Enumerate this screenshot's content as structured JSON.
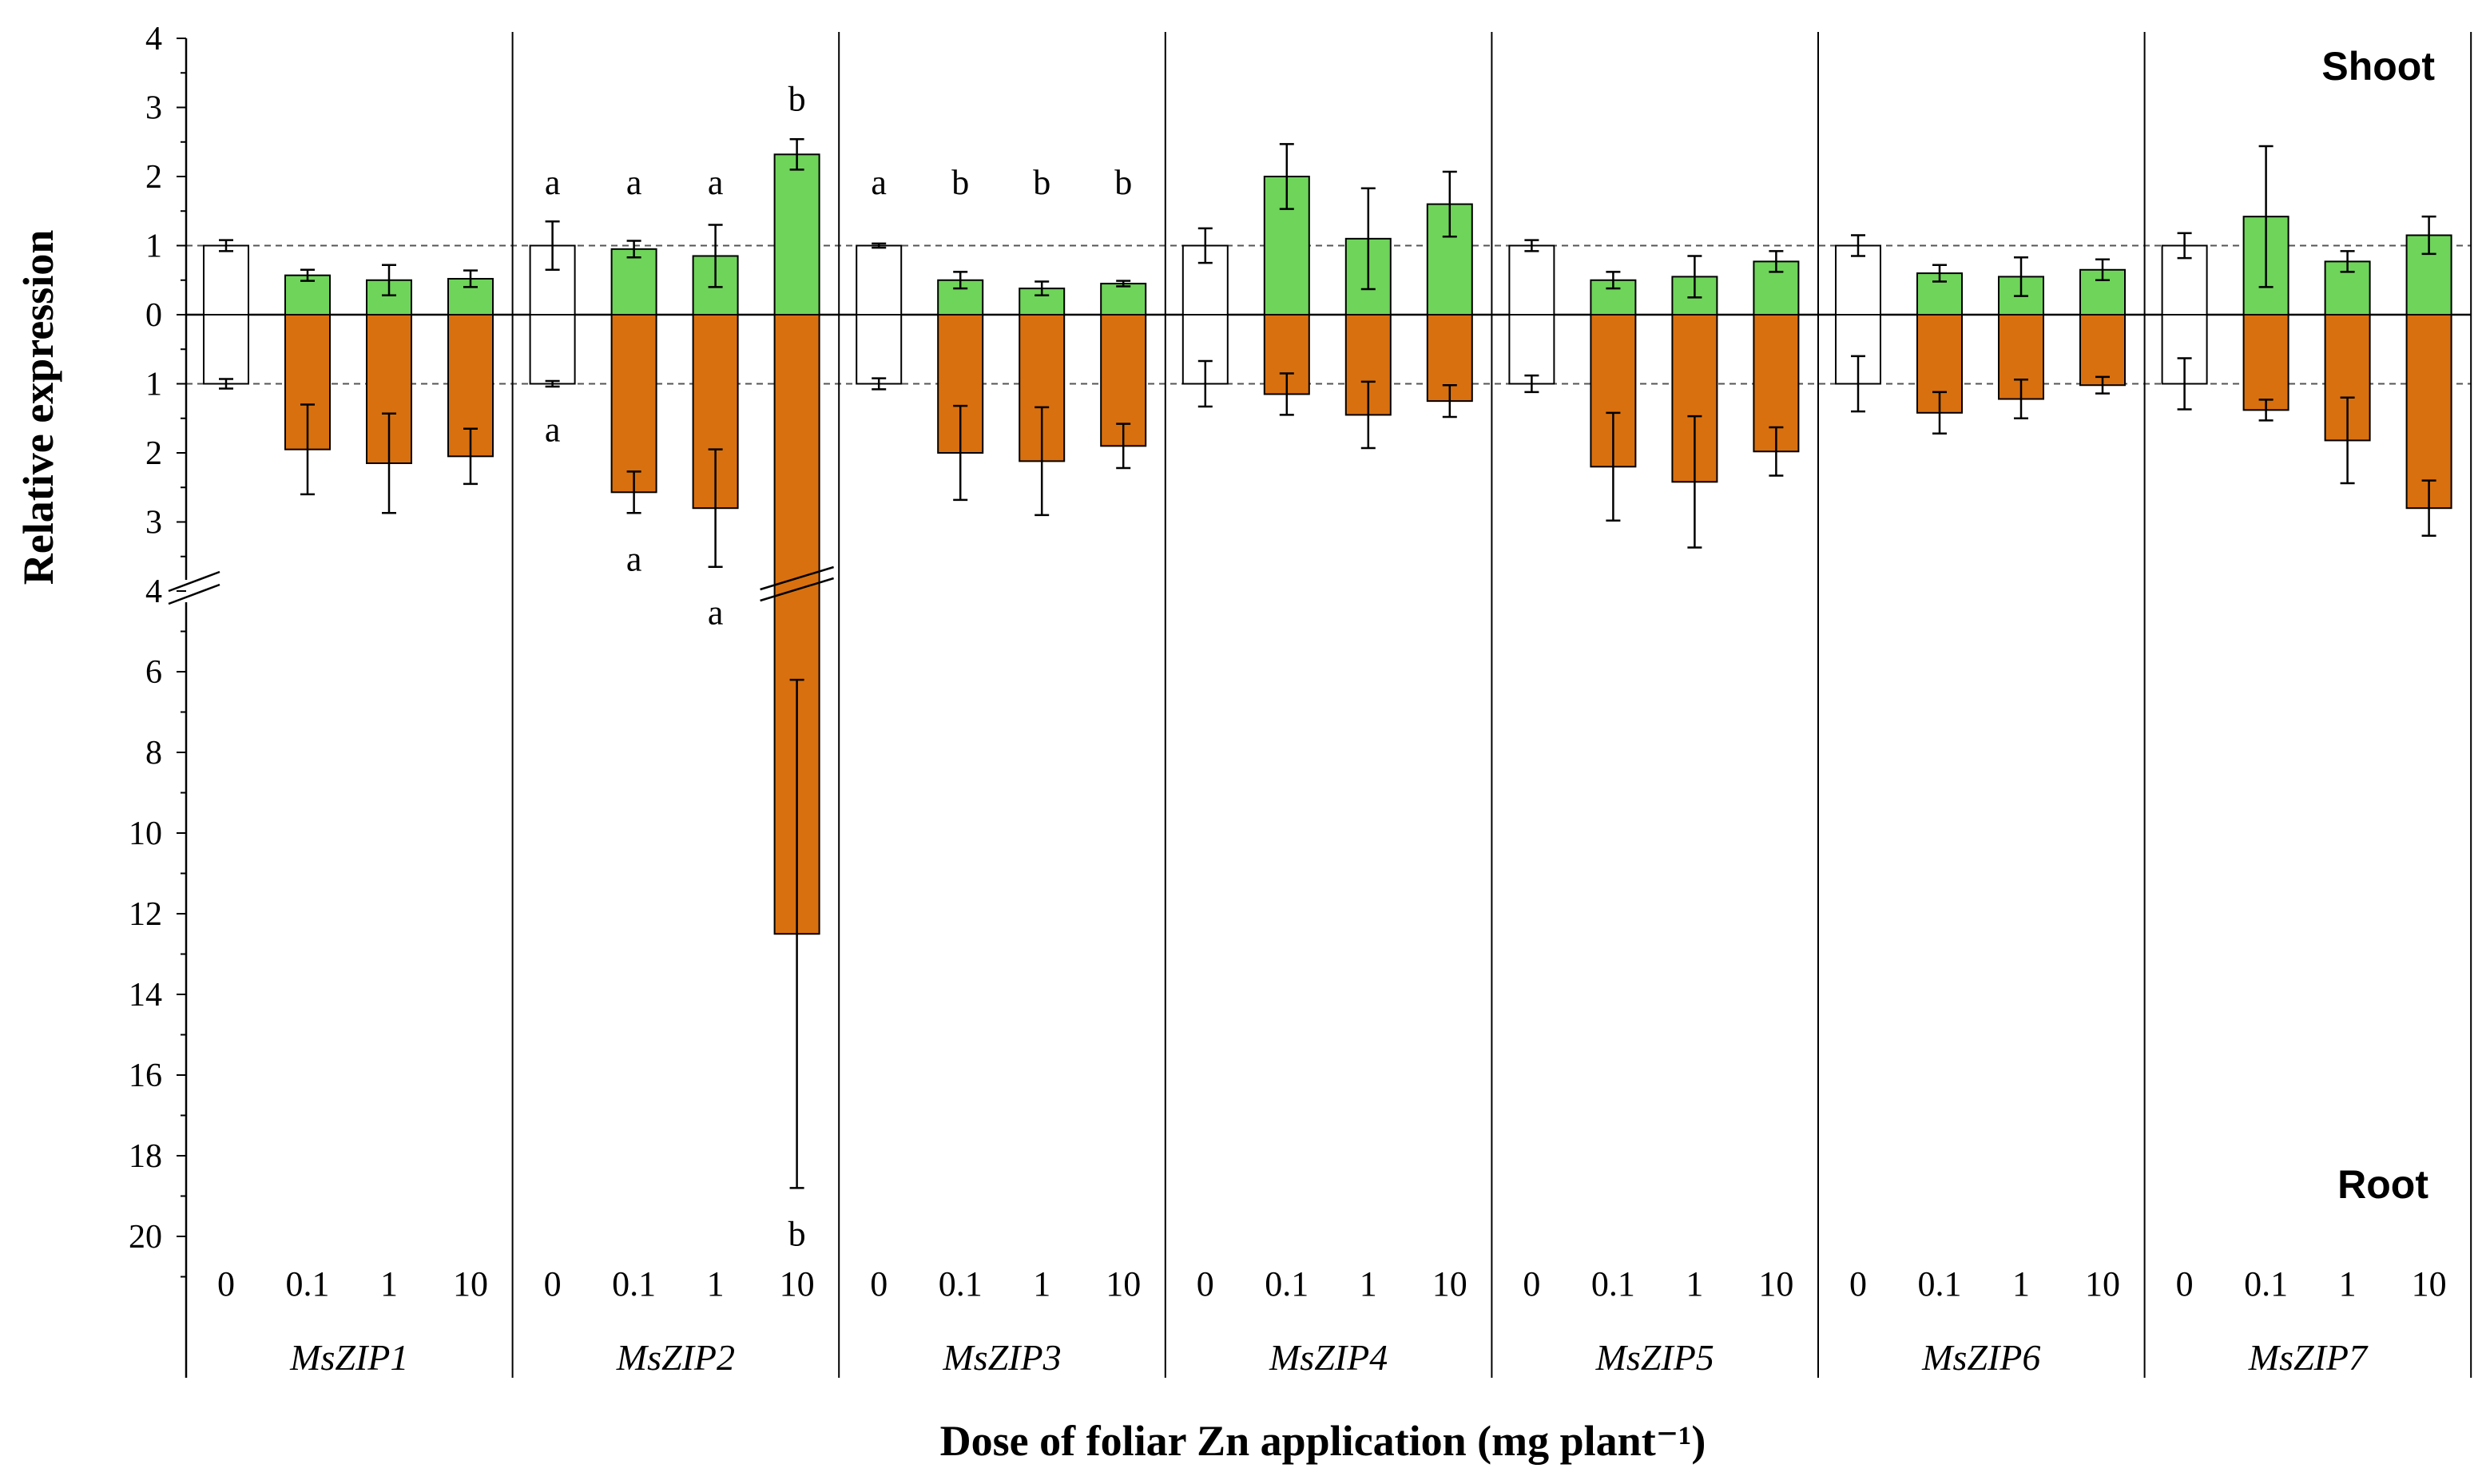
{
  "chart_data": {
    "type": "bar",
    "title": "",
    "xlabel": "Dose of foliar Zn application (mg plant⁻¹)",
    "ylabel": "Relative expression",
    "top_panel_label": "Shoot",
    "bottom_panel_label": "Root",
    "doses": [
      "0",
      "0.1",
      "1",
      "10"
    ],
    "shoot_ylim": [
      0,
      4
    ],
    "shoot_ticks": [
      "4",
      "3",
      "2",
      "1",
      "0"
    ],
    "root_upper_ylim": [
      0,
      4
    ],
    "root_upper_ticks": [
      "1",
      "2",
      "3",
      "4"
    ],
    "root_lower_ylim": [
      4,
      21
    ],
    "root_lower_ticks": [
      "6",
      "8",
      "10",
      "12",
      "14",
      "16",
      "18",
      "20"
    ],
    "reference_line": 1,
    "colors": {
      "control": "#ffffff",
      "shoot": "#6fd45a",
      "root": "#d9700f",
      "axis": "#000000",
      "grid": "#555555"
    },
    "genes": [
      {
        "name": "MsZIP1",
        "shoot": [
          1.0,
          0.57,
          0.5,
          0.52
        ],
        "shoot_err": [
          0.08,
          0.08,
          0.22,
          0.12
        ],
        "root": [
          1.0,
          1.95,
          2.15,
          2.05
        ],
        "root_err": [
          0.07,
          0.65,
          0.72,
          0.4
        ],
        "shoot_letters": [
          "",
          "",
          "",
          ""
        ],
        "root_letters": [
          "",
          "",
          "",
          ""
        ]
      },
      {
        "name": "MsZIP2",
        "shoot": [
          1.0,
          0.95,
          0.85,
          2.32
        ],
        "shoot_err": [
          0.35,
          0.12,
          0.45,
          0.22
        ],
        "root": [
          1.0,
          2.57,
          2.8,
          12.5
        ],
        "root_err": [
          0.04,
          0.3,
          0.85,
          6.3
        ],
        "shoot_letters": [
          "a",
          "a",
          "a",
          "b"
        ],
        "root_letters": [
          "a",
          "a",
          "a",
          "b"
        ]
      },
      {
        "name": "MsZIP3",
        "shoot": [
          1.0,
          0.5,
          0.38,
          0.45
        ],
        "shoot_err": [
          0.03,
          0.12,
          0.1,
          0.04
        ],
        "root": [
          1.0,
          2.0,
          2.12,
          1.9
        ],
        "root_err": [
          0.08,
          0.68,
          0.78,
          0.32
        ],
        "shoot_letters": [
          "a",
          "b",
          "b",
          "b"
        ],
        "root_letters": [
          "",
          "",
          "",
          ""
        ]
      },
      {
        "name": "MsZIP4",
        "shoot": [
          1.0,
          2.0,
          1.1,
          1.6
        ],
        "shoot_err": [
          0.25,
          0.47,
          0.73,
          0.47
        ],
        "root": [
          1.0,
          1.15,
          1.45,
          1.25
        ],
        "root_err": [
          0.33,
          0.3,
          0.48,
          0.23
        ],
        "shoot_letters": [
          "",
          "",
          "",
          ""
        ],
        "root_letters": [
          "",
          "",
          "",
          ""
        ]
      },
      {
        "name": "MsZIP5",
        "shoot": [
          1.0,
          0.5,
          0.55,
          0.77
        ],
        "shoot_err": [
          0.08,
          0.12,
          0.3,
          0.15
        ],
        "root": [
          1.0,
          2.2,
          2.42,
          1.98
        ],
        "root_err": [
          0.12,
          0.78,
          0.95,
          0.35
        ],
        "shoot_letters": [
          "",
          "",
          "",
          ""
        ],
        "root_letters": [
          "",
          "",
          "",
          ""
        ]
      },
      {
        "name": "MsZIP6",
        "shoot": [
          1.0,
          0.6,
          0.55,
          0.65
        ],
        "shoot_err": [
          0.15,
          0.12,
          0.28,
          0.15
        ],
        "root": [
          1.0,
          1.42,
          1.22,
          1.02
        ],
        "root_err": [
          0.4,
          0.3,
          0.28,
          0.12
        ],
        "shoot_letters": [
          "",
          "",
          "",
          ""
        ],
        "root_letters": [
          "",
          "",
          "",
          ""
        ]
      },
      {
        "name": "MsZIP7",
        "shoot": [
          1.0,
          1.42,
          0.77,
          1.15
        ],
        "shoot_err": [
          0.18,
          1.02,
          0.15,
          0.27
        ],
        "root": [
          1.0,
          1.38,
          1.82,
          2.8
        ],
        "root_err": [
          0.37,
          0.15,
          0.62,
          0.4
        ],
        "shoot_letters": [
          "",
          "",
          "",
          ""
        ],
        "root_letters": [
          "",
          "",
          "",
          ""
        ]
      }
    ]
  }
}
